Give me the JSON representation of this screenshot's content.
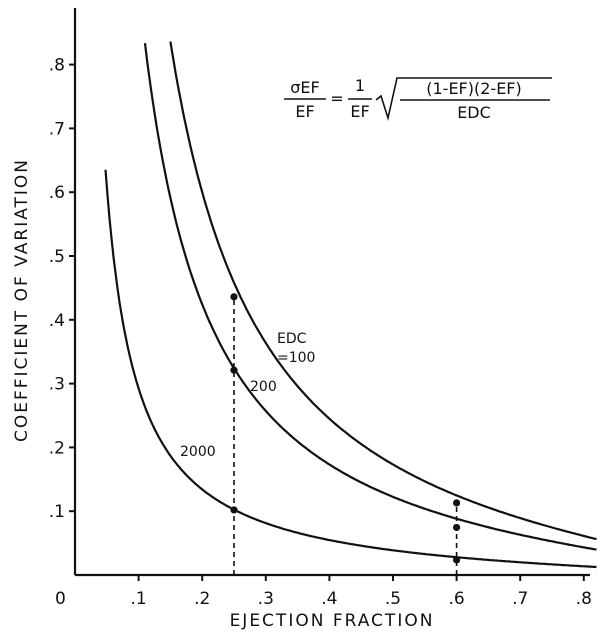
{
  "chart_data": {
    "type": "line",
    "title": "",
    "xlabel": "EJECTION FRACTION",
    "ylabel": "COEFFICIENT OF VARIATION",
    "xlim": [
      0,
      0.82
    ],
    "ylim": [
      0,
      0.87
    ],
    "origin_label": "0",
    "x_ticks": [
      {
        "value": 0.1,
        "label": ".1"
      },
      {
        "value": 0.2,
        "label": ".2"
      },
      {
        "value": 0.3,
        "label": ".3"
      },
      {
        "value": 0.4,
        "label": ".4"
      },
      {
        "value": 0.5,
        "label": ".5"
      },
      {
        "value": 0.6,
        "label": ".6"
      },
      {
        "value": 0.7,
        "label": ".7"
      },
      {
        "value": 0.8,
        "label": ".8"
      }
    ],
    "y_ticks": [
      {
        "value": 0.1,
        "label": ".1"
      },
      {
        "value": 0.2,
        "label": ".2"
      },
      {
        "value": 0.3,
        "label": ".3"
      },
      {
        "value": 0.4,
        "label": ".4"
      },
      {
        "value": 0.5,
        "label": ".5"
      },
      {
        "value": 0.6,
        "label": ".6"
      },
      {
        "value": 0.7,
        "label": ".7"
      },
      {
        "value": 0.8,
        "label": ".8"
      }
    ],
    "formula": {
      "lhs_num": "σEF",
      "lhs_den": "EF",
      "equals": "=",
      "rhs_num": "1",
      "rhs_den": "EF",
      "radicand_num": "(1-EF)(2-EF)",
      "radicand_den": "EDC"
    },
    "series": [
      {
        "edc": 100,
        "label_lines": [
          "EDC",
          "=100"
        ],
        "x_start": 0.15,
        "x_end": 0.82
      },
      {
        "edc": 200,
        "label_lines": [
          "200"
        ],
        "x_start": 0.11,
        "x_end": 0.82
      },
      {
        "edc": 2000,
        "label_lines": [
          "2000"
        ],
        "x_start": 0.048,
        "x_end": 0.82
      }
    ],
    "markers": [
      {
        "x": 0.25,
        "y": 0.436
      },
      {
        "x": 0.25,
        "y": 0.321
      },
      {
        "x": 0.25,
        "y": 0.102
      },
      {
        "x": 0.6,
        "y": 0.113
      },
      {
        "x": 0.6,
        "y": 0.0745
      },
      {
        "x": 0.6,
        "y": 0.0236
      }
    ],
    "dashed_lines": [
      {
        "x": 0.25,
        "y_top": 0.436
      },
      {
        "x": 0.6,
        "y_top": 0.113
      }
    ],
    "grid": false,
    "legend": "none"
  }
}
